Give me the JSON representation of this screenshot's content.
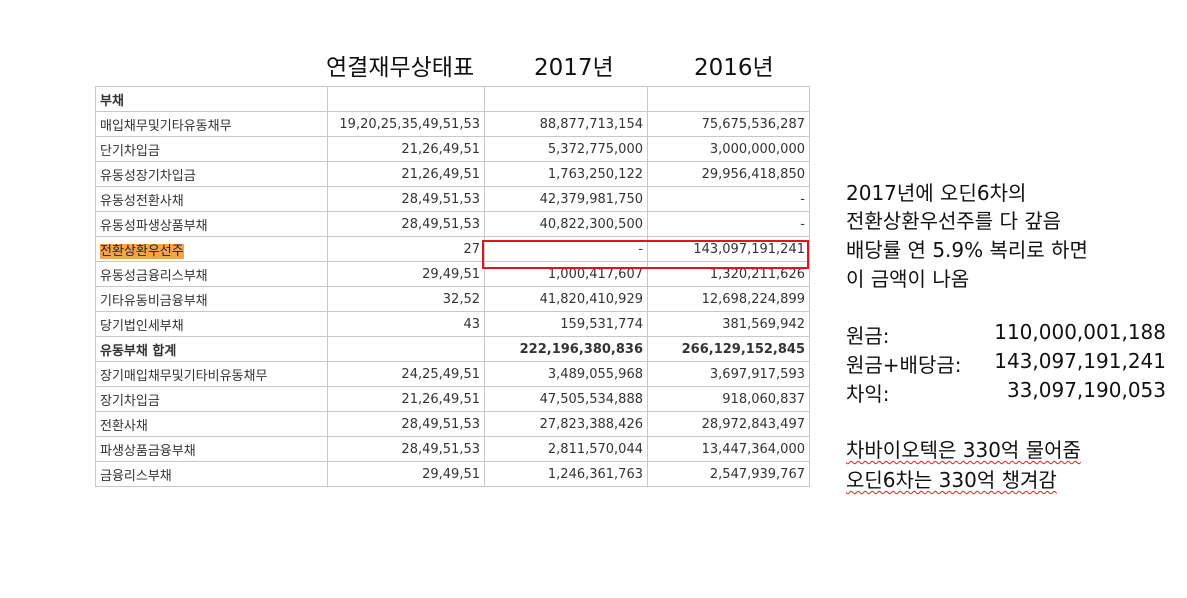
{
  "header": {
    "title": "연결재무상태표",
    "year1": "2017년",
    "year2": "2016년"
  },
  "table": {
    "rows": [
      {
        "name": "부채",
        "note": "",
        "y2017": "",
        "y2016": "",
        "bold": true,
        "highlight": false
      },
      {
        "name": "매입채무및기타유동채무",
        "note": "19,20,25,35,49,51,53",
        "y2017": "88,877,713,154",
        "y2016": "75,675,536,287",
        "bold": false,
        "highlight": false
      },
      {
        "name": "단기차입금",
        "note": "21,26,49,51",
        "y2017": "5,372,775,000",
        "y2016": "3,000,000,000",
        "bold": false,
        "highlight": false
      },
      {
        "name": "유동성장기차입금",
        "note": "21,26,49,51",
        "y2017": "1,763,250,122",
        "y2016": "29,956,418,850",
        "bold": false,
        "highlight": false
      },
      {
        "name": "유동성전환사채",
        "note": "28,49,51,53",
        "y2017": "42,379,981,750",
        "y2016": "-",
        "bold": false,
        "highlight": false
      },
      {
        "name": "유동성파생상품부채",
        "note": "28,49,51,53",
        "y2017": "40,822,300,500",
        "y2016": "-",
        "bold": false,
        "highlight": false
      },
      {
        "name": "전환상환우선주",
        "note": "27",
        "y2017": "-",
        "y2016": "143,097,191,241",
        "bold": false,
        "highlight": true
      },
      {
        "name": "유동성금융리스부채",
        "note": "29,49,51",
        "y2017": "1,000,417,607",
        "y2016": "1,320,211,626",
        "bold": false,
        "highlight": false
      },
      {
        "name": "기타유동비금융부채",
        "note": "32,52",
        "y2017": "41,820,410,929",
        "y2016": "12,698,224,899",
        "bold": false,
        "highlight": false
      },
      {
        "name": "당기법인세부채",
        "note": "43",
        "y2017": "159,531,774",
        "y2016": "381,569,942",
        "bold": false,
        "highlight": false
      },
      {
        "name": "유동부채 합계",
        "note": "",
        "y2017": "222,196,380,836",
        "y2016": "266,129,152,845",
        "bold": true,
        "highlight": false
      },
      {
        "name": "장기매입채무및기타비유동채무",
        "note": "24,25,49,51",
        "y2017": "3,489,055,968",
        "y2016": "3,697,917,593",
        "bold": false,
        "highlight": false
      },
      {
        "name": "장기차입금",
        "note": "21,26,49,51",
        "y2017": "47,505,534,888",
        "y2016": "918,060,837",
        "bold": false,
        "highlight": false
      },
      {
        "name": "전환사채",
        "note": "28,49,51,53",
        "y2017": "27,823,388,426",
        "y2016": "28,972,843,497",
        "bold": false,
        "highlight": false
      },
      {
        "name": "파생상품금융부채",
        "note": "28,49,51,53",
        "y2017": "2,811,570,044",
        "y2016": "13,447,364,000",
        "bold": false,
        "highlight": false
      },
      {
        "name": "금융리스부채",
        "note": "29,49,51",
        "y2017": "1,246,361,763",
        "y2016": "2,547,939,767",
        "bold": false,
        "highlight": false
      }
    ]
  },
  "annotation": {
    "lines": [
      "2017년에 오딘6차의",
      "전환상환우선주를 다 갚음",
      "배당률 연 5.9% 복리로 하면",
      "이 금액이 나옴"
    ],
    "calc": [
      {
        "label": "원금:",
        "value": "110,000,001,188"
      },
      {
        "label": "원금+배당금:",
        "value": "143,097,191,241"
      },
      {
        "label": "차익:",
        "value": "33,097,190,053"
      }
    ],
    "closing": [
      "차바이오텍은 330억 물어줌",
      "오딘6차는 330억 챙겨감"
    ],
    "colors": {
      "highlight": "#f5a44b",
      "box": "#e0141e"
    }
  }
}
